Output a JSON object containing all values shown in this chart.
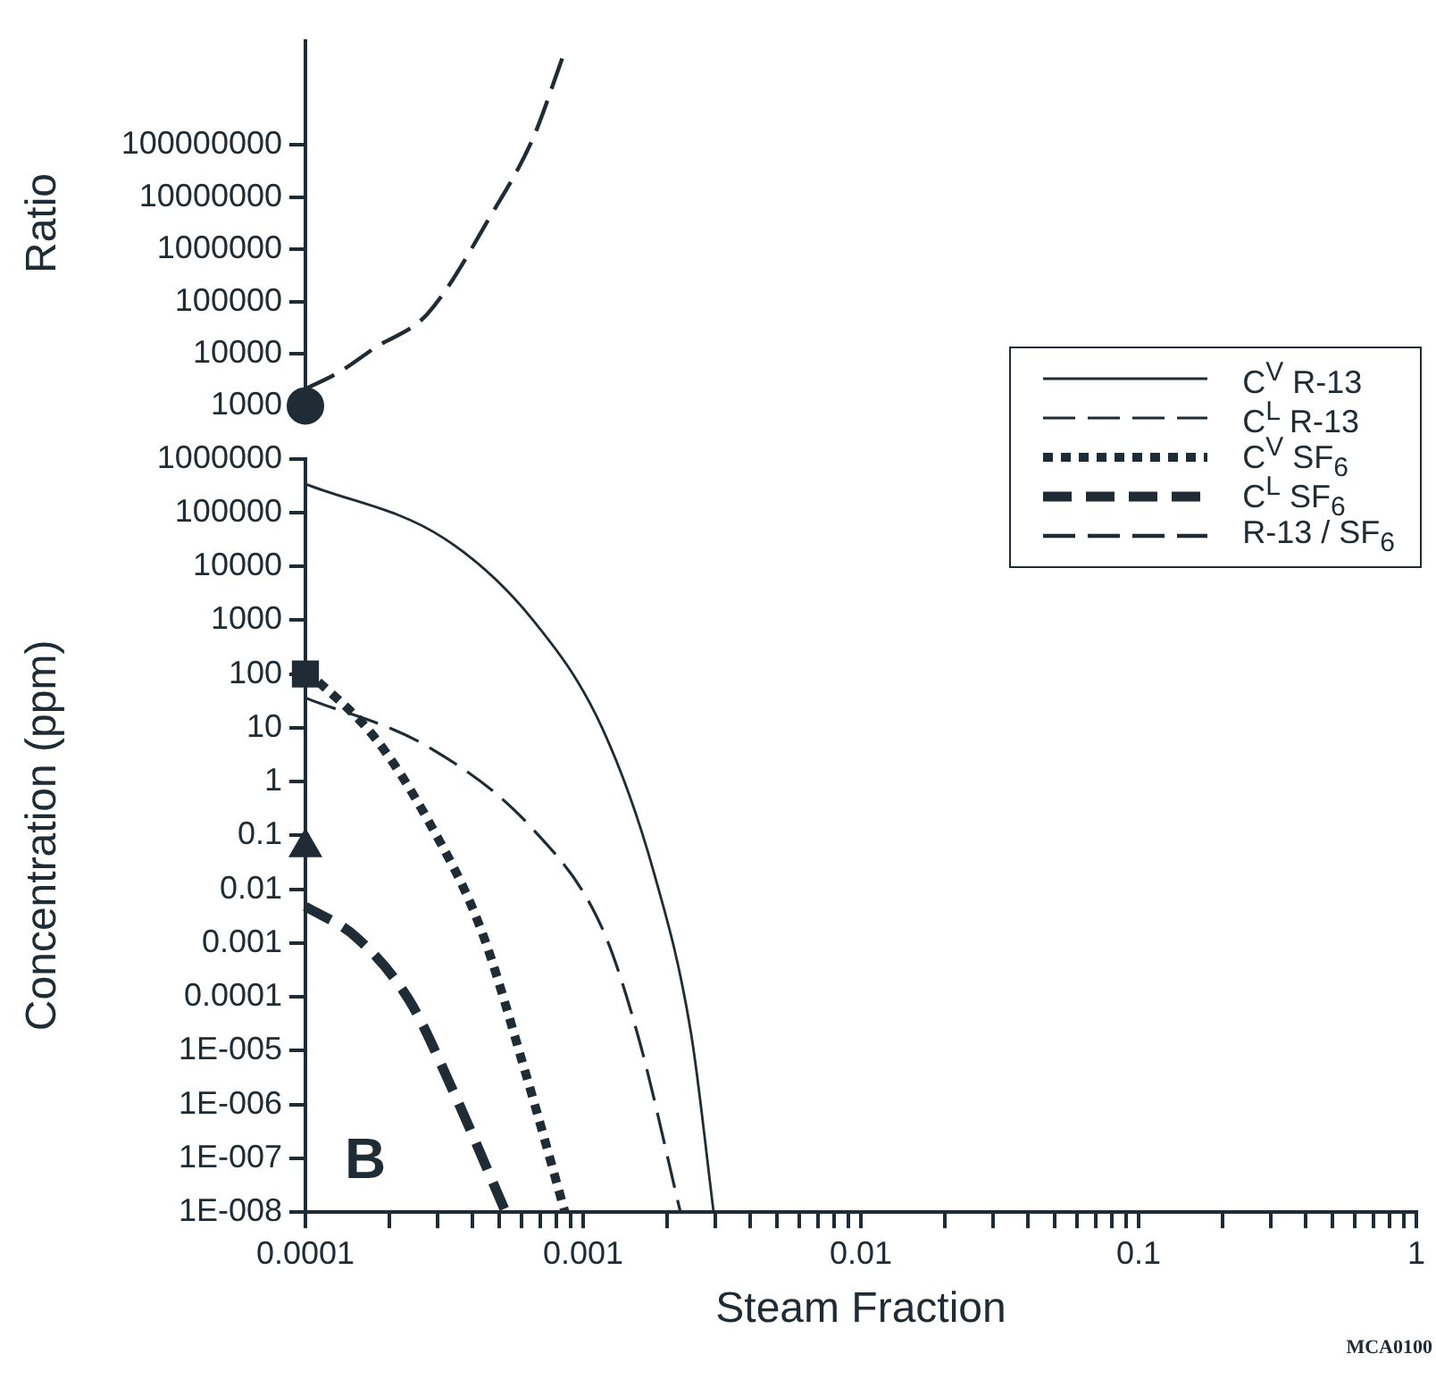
{
  "chart_data": [
    {
      "type": "line",
      "ylabel": "Ratio",
      "log": "xy",
      "tick_labels": "y",
      "xlim": [
        0.0001,
        1
      ],
      "ylim": [
        1000,
        10000000000
      ],
      "yticks": [
        1000,
        10000,
        100000,
        1000000,
        10000000,
        100000000
      ],
      "grid": false,
      "legend": "bottom right",
      "series": [
        {
          "name": "R-13 / SF$_{6}$",
          "color": "#1f2b35",
          "line_style": "dashed",
          "x": [
            0.0001,
            0.000132,
            0.000178,
            0.000275,
            0.00047,
            0.00066,
            0.00085
          ],
          "values": [
            2100,
            4400,
            13000,
            58000,
            4900000,
            135000000,
            5400000000
          ]
        },
        {
          "type": "scatter",
          "color": "#1f2b35",
          "marker": "circle",
          "x": [
            0.0001
          ],
          "values": [
            1000
          ]
        }
      ]
    },
    {
      "type": "line",
      "xlabel": "Steam Fraction",
      "ylabel": "Concentration (ppm)",
      "log": "xy",
      "xlim": [
        0.0001,
        1
      ],
      "xticks": [
        0.0001,
        {
          "value": 0.0002,
          "label": null
        },
        {
          "value": 0.0003,
          "label": null
        },
        {
          "value": 0.0004,
          "label": null
        },
        {
          "value": 0.0005,
          "label": null
        },
        {
          "value": 0.0006,
          "label": null
        },
        {
          "value": 0.0007,
          "label": null
        },
        {
          "value": 0.0008,
          "label": null
        },
        {
          "value": 0.0009,
          "label": null
        },
        0.001,
        {
          "value": 0.002,
          "label": null
        },
        {
          "value": 0.003,
          "label": null
        },
        {
          "value": 0.004,
          "label": null
        },
        {
          "value": 0.005,
          "label": null
        },
        {
          "value": 0.006,
          "label": null
        },
        {
          "value": 0.007,
          "label": null
        },
        {
          "value": 0.008,
          "label": null
        },
        {
          "value": 0.009,
          "label": null
        },
        0.01,
        {
          "value": 0.02,
          "label": null
        },
        {
          "value": 0.03,
          "label": null
        },
        {
          "value": 0.04,
          "label": null
        },
        {
          "value": 0.05,
          "label": null
        },
        {
          "value": 0.06,
          "label": null
        },
        {
          "value": 0.07,
          "label": null
        },
        {
          "value": 0.08,
          "label": null
        },
        {
          "value": 0.09,
          "label": null
        },
        0.1,
        {
          "value": 0.2,
          "label": null
        },
        {
          "value": 0.3,
          "label": null
        },
        {
          "value": 0.4,
          "label": null
        },
        {
          "value": 0.5,
          "label": null
        },
        {
          "value": 0.6,
          "label": null
        },
        {
          "value": 0.7,
          "label": null
        },
        {
          "value": 0.8,
          "label": null
        },
        {
          "value": 0.9,
          "label": null
        },
        1
      ],
      "ylim": [
        1e-08,
        1000000
      ],
      "yticks": [
        {
          "value": 1e-08,
          "label": "1E-008"
        },
        {
          "value": 1e-07,
          "label": "1E-007"
        },
        {
          "value": 1e-06,
          "label": "1E-006"
        },
        {
          "value": 1e-05,
          "label": "1E-005"
        },
        0.0001,
        0.001,
        0.01,
        0.1,
        1,
        10,
        100,
        1000,
        10000,
        100000,
        1000000
      ],
      "grid": false,
      "legend": "top right",
      "series": [
        {
          "name": "C$^{V}$ R-13",
          "color": "#1f2b35",
          "line_style": "solid",
          "x": [
            0.0001,
            0.000316,
            0.00066,
            0.00117,
            0.0018,
            0.00245,
            0.00295
          ],
          "values": [
            340000,
            33000,
            1000,
            10,
            0.02,
            2e-05,
            1e-08
          ]
        },
        {
          "name": "C$^{L}$ R-13",
          "color": "#1f2b35",
          "line_style": "dashed",
          "x": [
            0.0001,
            0.000275,
            0.00066,
            0.00117,
            0.00158,
            0.00224
          ],
          "values": [
            36,
            4.5,
            0.13,
            0.0019,
            1.8e-05,
            1e-08
          ]
        },
        {
          "name": "C$^{V}$ SF$_{6}$",
          "color": "#1f2b35",
          "line_style": "dotted",
          "x": [
            0.0001,
            0.000178,
            0.000275,
            0.000427,
            0.00062,
            0.00086
          ],
          "values": [
            120,
            6.5,
            0.2,
            0.0019,
            3.9e-06,
            1e-08
          ]
        },
        {
          "name": "C$^{L}$ SF$_{6}$",
          "color": "#1f2b35",
          "line_style": "dashed",
          "x": [
            0.0001,
            0.000152,
            0.000237,
            0.00034,
            0.000526
          ],
          "values": [
            0.0048,
            0.0013,
            8.5e-05,
            1.8e-06,
            1e-08
          ]
        },
        {
          "type": "scatter",
          "color": "#1f2b35",
          "marker": "square",
          "x": [
            0.0001
          ],
          "values": [
            100
          ]
        },
        {
          "type": "scatter",
          "color": "#1f2b35",
          "marker": "triangle",
          "x": [
            0.0001
          ],
          "values": [
            0.06
          ]
        }
      ],
      "annotations": [
        "B",
        "MCA0100"
      ]
    }
  ]
}
